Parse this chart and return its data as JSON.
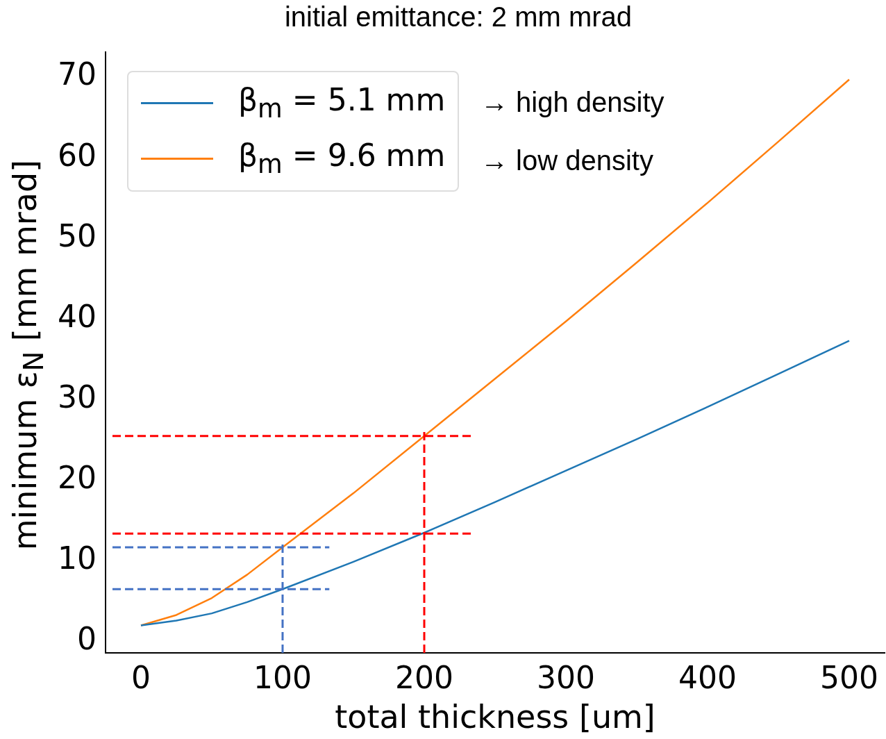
{
  "chart_data": {
    "type": "line",
    "title": "initial emittance: 2 mm mrad",
    "xlabel": "total thickness [um]",
    "ylabel": "minimum ε$_{N}$ [mm mrad]",
    "x": [
      0,
      25,
      50,
      75,
      100,
      150,
      200,
      250,
      300,
      350,
      400,
      450,
      500
    ],
    "series": [
      {
        "name": "β$_{m}$ = 5.1 mm",
        "color": "#1f77b4",
        "values": [
          2,
          2.6,
          3.5,
          4.9,
          6.5,
          9.9,
          13.5,
          17.3,
          21.2,
          25.1,
          29.1,
          33.2,
          37.3
        ]
      },
      {
        "name": "β$_{m}$ = 9.6 mm",
        "color": "#ff7f0e",
        "values": [
          2,
          3.3,
          5.4,
          8.3,
          11.7,
          18.4,
          25.5,
          32.6,
          39.7,
          47.0,
          54.4,
          62.0,
          69.7
        ]
      }
    ],
    "xlim": [
      -25,
      525
    ],
    "xticks": [
      0,
      100,
      200,
      300,
      400,
      500
    ],
    "ylim": [
      -1.4,
      73.1
    ],
    "yticks": [
      0,
      10,
      20,
      30,
      40,
      50,
      60,
      70
    ],
    "grid": false,
    "legend": "top left",
    "marker": "none",
    "line_style": "solid",
    "annotations": [
      "→ high density",
      "→ low density"
    ],
    "ref_lines": [
      {
        "axis": "y",
        "value": 25.5,
        "color": "#ff0000",
        "line_style": "dashed"
      },
      {
        "axis": "y",
        "value": 13.4,
        "color": "#ff0000",
        "line_style": "dashed"
      },
      {
        "axis": "x",
        "value": 200,
        "color": "#ff0000",
        "line_style": "dashed"
      },
      {
        "axis": "y",
        "value": 11.7,
        "color": "#4472c4",
        "line_style": "dashed"
      },
      {
        "axis": "y",
        "value": 6.5,
        "color": "#4472c4",
        "line_style": "dashed"
      },
      {
        "axis": "x",
        "value": 100,
        "color": "#4472c4",
        "line_style": "dashed"
      }
    ]
  }
}
